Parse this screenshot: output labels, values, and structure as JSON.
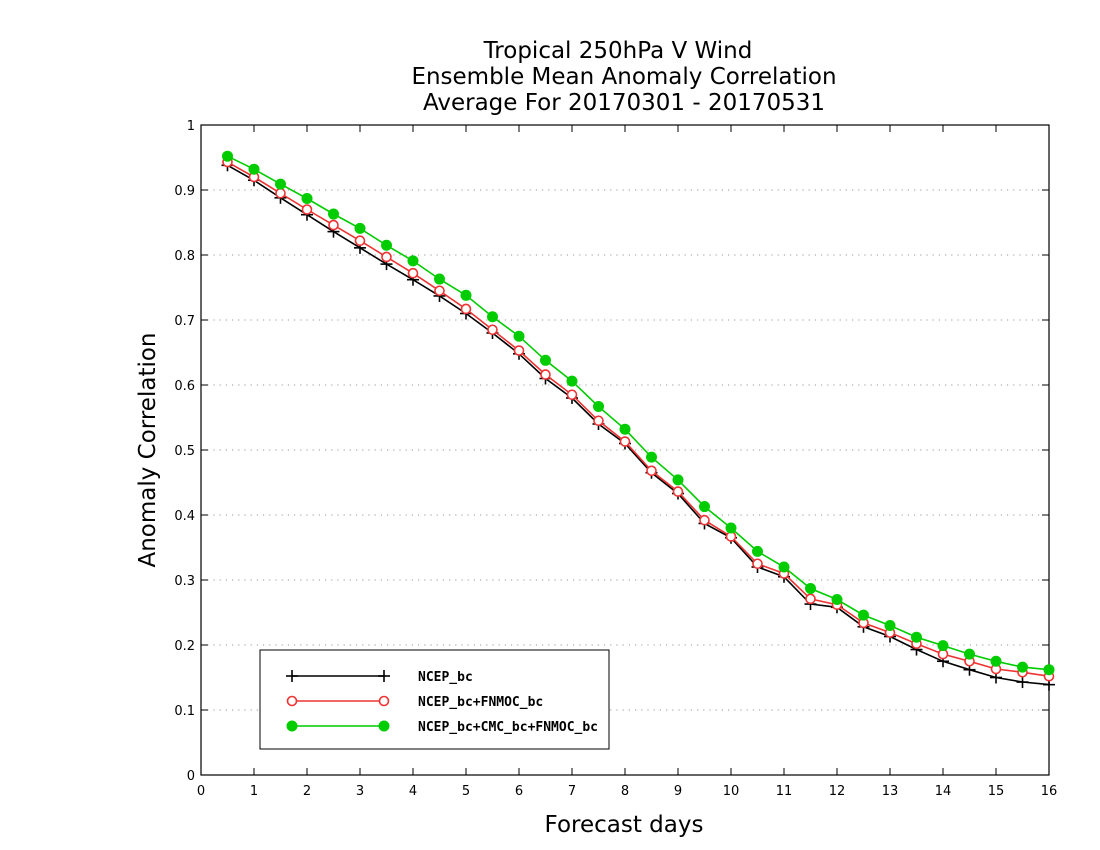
{
  "chart_data": {
    "type": "line",
    "title_lines": [
      "Tropical 250hPa V Wind",
      "Ensemble Mean Anomaly Correlation",
      "Average For 20170301 - 20170531"
    ],
    "xlabel": "Forecast days",
    "ylabel": "Anomaly Correlation",
    "xlim": [
      0,
      16
    ],
    "ylim": [
      0,
      1
    ],
    "x_ticks": [
      "0",
      "1",
      "2",
      "3",
      "4",
      "5",
      "6",
      "7",
      "8",
      "9",
      "10",
      "11",
      "12",
      "13",
      "14",
      "15",
      "16"
    ],
    "y_ticks": [
      "0",
      "0.1",
      "0.2",
      "0.3",
      "0.4",
      "0.5",
      "0.6",
      "0.7",
      "0.8",
      "0.9",
      "1"
    ],
    "grid": "horizontal dotted",
    "legend_position": "lower-left",
    "x": [
      0.5,
      1,
      1.5,
      2,
      2.5,
      3,
      3.5,
      4,
      4.5,
      5,
      5.5,
      6,
      6.5,
      7,
      7.5,
      8,
      8.5,
      9,
      9.5,
      10,
      10.5,
      11,
      11.5,
      12,
      12.5,
      13,
      13.5,
      14,
      14.5,
      15,
      15.5,
      16
    ],
    "series": [
      {
        "name": "NCEP_bc",
        "color": "#000000",
        "marker": "plus",
        "values": [
          0.938,
          0.915,
          0.888,
          0.862,
          0.836,
          0.811,
          0.786,
          0.762,
          0.737,
          0.71,
          0.68,
          0.648,
          0.61,
          0.58,
          0.54,
          0.51,
          0.465,
          0.433,
          0.387,
          0.365,
          0.32,
          0.305,
          0.263,
          0.258,
          0.228,
          0.213,
          0.193,
          0.175,
          0.162,
          0.15,
          0.143,
          0.139
        ]
      },
      {
        "name": "NCEP_bc+FNMOC_bc",
        "color": "#ee3333",
        "marker": "open-circle",
        "values": [
          0.943,
          0.92,
          0.895,
          0.87,
          0.846,
          0.822,
          0.797,
          0.772,
          0.745,
          0.717,
          0.685,
          0.653,
          0.616,
          0.585,
          0.545,
          0.513,
          0.468,
          0.436,
          0.392,
          0.367,
          0.325,
          0.31,
          0.271,
          0.262,
          0.234,
          0.219,
          0.202,
          0.186,
          0.175,
          0.163,
          0.158,
          0.152
        ]
      },
      {
        "name": "NCEP_bc+CMC_bc+FNMOC_bc",
        "color": "#00cc00",
        "marker": "filled-circle",
        "values": [
          0.952,
          0.932,
          0.909,
          0.887,
          0.863,
          0.841,
          0.815,
          0.791,
          0.763,
          0.738,
          0.705,
          0.675,
          0.638,
          0.606,
          0.567,
          0.532,
          0.489,
          0.454,
          0.413,
          0.38,
          0.344,
          0.32,
          0.287,
          0.27,
          0.246,
          0.23,
          0.212,
          0.199,
          0.186,
          0.175,
          0.166,
          0.162
        ]
      }
    ]
  }
}
